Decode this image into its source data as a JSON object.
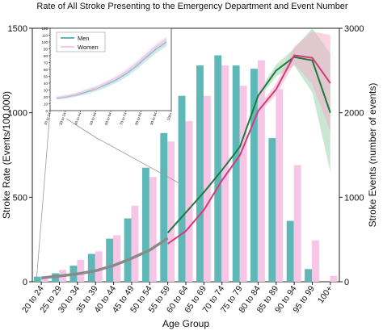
{
  "chart_data": {
    "type": "bar",
    "title": "Rate of All Stroke Presenting to the Emergency Department and Event Number",
    "xlabel": "Age Group",
    "ylabel_left": "Stroke Rate (Events/100,000)",
    "ylabel_right": "Stroke Events (number of events)",
    "categories": [
      "20 to 24",
      "25 to 29",
      "30 to 34",
      "35 to 39",
      "40 to 44",
      "45 to 49",
      "50 to 54",
      "55 to 59",
      "60 to 64",
      "65 to 69",
      "70 to 74",
      "75 to 79",
      "80 to 84",
      "85 to 89",
      "90 to 94",
      "95 to 99",
      "100+"
    ],
    "ylim_left": [
      0,
      1500
    ],
    "ylim_right": [
      0,
      3000
    ],
    "yticks_left": [
      "0",
      "500",
      "1000",
      "1500"
    ],
    "yticks_right": [
      "0",
      "1000",
      "2000",
      "3000"
    ],
    "colors": {
      "men": "#5fb8b8",
      "women": "#f7c6e6",
      "men_line": "#1e7a3c",
      "women_line": "#d63a7a",
      "men_band": "#9ed3b0",
      "women_band": "#f3b0c8",
      "overlap_line": "#8a8a8a"
    },
    "series": [
      {
        "name": "Men",
        "kind": "rate",
        "values": [
          30,
          50,
          95,
          165,
          255,
          375,
          675,
          880,
          1100,
          1280,
          1340,
          1280,
          1260,
          850,
          360,
          75,
          null
        ]
      },
      {
        "name": "Women",
        "kind": "rate",
        "values": [
          20,
          70,
          130,
          180,
          275,
          450,
          620,
          830,
          950,
          1100,
          1280,
          1160,
          1310,
          1140,
          690,
          245,
          35
        ]
      },
      {
        "name": "Men",
        "kind": "events",
        "values": [
          50,
          75,
          105,
          150,
          215,
          300,
          410,
          580,
          820,
          1060,
          1320,
          1600,
          2200,
          2500,
          2660,
          2620,
          2000
        ]
      },
      {
        "name": "Women",
        "kind": "events",
        "values": [
          40,
          60,
          80,
          110,
          170,
          255,
          340,
          450,
          600,
          850,
          1200,
          1500,
          2020,
          2280,
          2680,
          2650,
          2350
        ]
      }
    ],
    "inset": {
      "legend": [
        "Men",
        "Women"
      ],
      "ylim": [
        0,
        120
      ],
      "yticks": [
        "0",
        "10",
        "20",
        "30",
        "40",
        "50",
        "60",
        "70",
        "80",
        "90",
        "100",
        "110",
        "120"
      ],
      "xticks": [
        "20 to 24",
        "30 to 34",
        "40 to 44",
        "50 to 54",
        "60 to 64",
        "70 to 74",
        "80 to 84",
        "90 to 94",
        "100+"
      ],
      "series": [
        {
          "name": "Men",
          "values": [
            18,
            20,
            23,
            27,
            32,
            38,
            45,
            54,
            65,
            78,
            90,
            100
          ]
        },
        {
          "name": "Women",
          "values": [
            19,
            21,
            24,
            29,
            33,
            40,
            48,
            57,
            68,
            80,
            94,
            102
          ]
        }
      ]
    }
  }
}
